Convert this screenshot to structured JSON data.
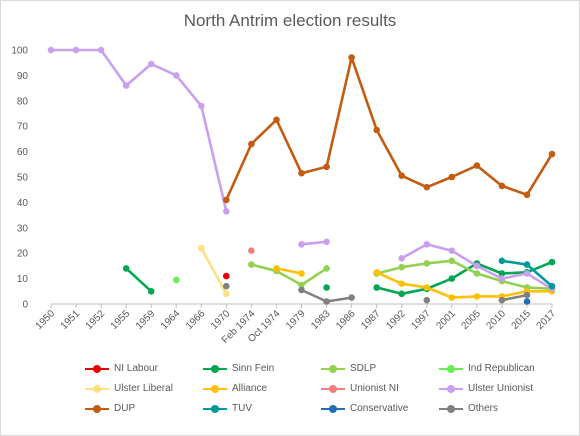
{
  "chart_data": {
    "type": "line",
    "title": "North Antrim election results",
    "x": [
      "1950",
      "1951",
      "1952",
      "1955",
      "1959",
      "1964",
      "1966",
      "1970",
      "Feb 1974",
      "Oct 1974",
      "1979",
      "1983",
      "1986",
      "1987",
      "1992",
      "1997",
      "2001",
      "2005",
      "2010",
      "2015",
      "2017"
    ],
    "ylim": [
      0,
      100
    ],
    "yticks": [
      0,
      10,
      20,
      30,
      40,
      50,
      60,
      70,
      80,
      90,
      100
    ],
    "grid": false,
    "legend_position": "bottom",
    "series": [
      {
        "name": "NI Labour",
        "color": "#e60000",
        "values": [
          null,
          null,
          null,
          null,
          null,
          null,
          null,
          11,
          null,
          null,
          null,
          null,
          null,
          null,
          null,
          null,
          null,
          null,
          null,
          null,
          null
        ]
      },
      {
        "name": "Sinn Fein",
        "color": "#00a651",
        "values": [
          null,
          null,
          null,
          14,
          5,
          null,
          null,
          null,
          null,
          null,
          null,
          6.5,
          null,
          6.5,
          4,
          6,
          10,
          16,
          12,
          12.5,
          16.5
        ]
      },
      {
        "name": "SDLP",
        "color": "#92d050",
        "values": [
          null,
          null,
          null,
          null,
          null,
          null,
          null,
          null,
          15.5,
          13,
          7.5,
          14,
          null,
          12,
          14.5,
          16,
          17,
          12,
          9,
          6.5,
          6
        ]
      },
      {
        "name": "Ind Republican",
        "color": "#66ee55",
        "values": [
          null,
          null,
          null,
          null,
          null,
          9.5,
          null,
          null,
          null,
          null,
          null,
          null,
          null,
          null,
          null,
          null,
          null,
          null,
          null,
          null,
          null
        ]
      },
      {
        "name": "Ulster Liberal",
        "color": "#ffe07f",
        "values": [
          null,
          null,
          null,
          null,
          null,
          null,
          22,
          4,
          null,
          null,
          null,
          null,
          null,
          null,
          null,
          null,
          null,
          null,
          null,
          null,
          null
        ]
      },
      {
        "name": "Alliance",
        "color": "#ffc000",
        "values": [
          null,
          null,
          null,
          null,
          null,
          null,
          null,
          null,
          null,
          14,
          12,
          null,
          null,
          12.5,
          8,
          6.5,
          2.5,
          3,
          3,
          5,
          5
        ]
      },
      {
        "name": "Unionist NI",
        "color": "#f08080",
        "values": [
          null,
          null,
          null,
          null,
          null,
          null,
          null,
          null,
          21,
          null,
          null,
          null,
          null,
          null,
          null,
          null,
          null,
          null,
          null,
          null,
          null
        ]
      },
      {
        "name": "Ulster Unionist",
        "color": "#c9a0f0",
        "values": [
          100,
          100,
          100,
          86,
          94.5,
          90,
          78,
          36.5,
          null,
          null,
          23.5,
          24.5,
          null,
          null,
          18,
          23.5,
          21,
          15,
          10,
          12,
          6
        ]
      },
      {
        "name": "DUP",
        "color": "#c55a11",
        "values": [
          null,
          null,
          null,
          null,
          null,
          null,
          null,
          41,
          63,
          72.5,
          51.5,
          54,
          97,
          68.5,
          50.5,
          46,
          50,
          54.5,
          46.5,
          43,
          59
        ]
      },
      {
        "name": "TUV",
        "color": "#009999",
        "values": [
          null,
          null,
          null,
          null,
          null,
          null,
          null,
          null,
          null,
          null,
          null,
          null,
          null,
          null,
          null,
          null,
          null,
          null,
          17,
          15.5,
          7
        ]
      },
      {
        "name": "Conservative",
        "color": "#1f6fb2",
        "values": [
          null,
          null,
          null,
          null,
          null,
          null,
          null,
          null,
          null,
          null,
          null,
          null,
          null,
          null,
          null,
          null,
          null,
          null,
          null,
          1,
          null
        ]
      },
      {
        "name": "Others",
        "color": "#808080",
        "values": [
          null,
          null,
          null,
          null,
          null,
          null,
          null,
          7,
          null,
          null,
          5.5,
          1,
          2.5,
          null,
          null,
          1.5,
          null,
          null,
          1.5,
          3.5,
          null
        ]
      }
    ]
  }
}
